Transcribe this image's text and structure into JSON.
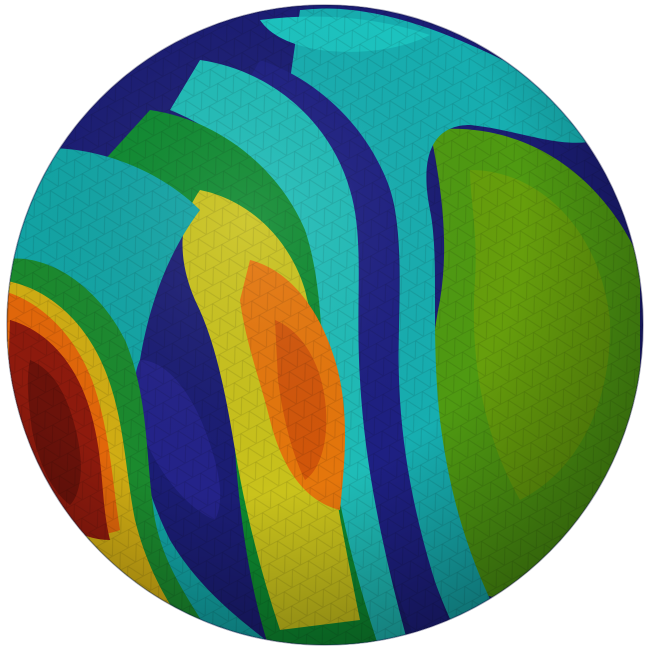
{
  "scene": {
    "subject": "sphere-mesh",
    "colormap": [
      "#191970",
      "#00CED1",
      "#008000",
      "#CCCC00",
      "#FF8C00",
      "#8B0000"
    ],
    "background": "#ffffff",
    "bands": [
      {
        "name": "cap-right",
        "color": "#4f9a12"
      },
      {
        "name": "stripe-blue-1",
        "color": "#1d1f7a"
      },
      {
        "name": "stripe-cyan-1",
        "color": "#19b6b4"
      },
      {
        "name": "band-green",
        "color": "#0f8a2c"
      },
      {
        "name": "band-yellow",
        "color": "#c9c51a"
      },
      {
        "name": "band-orange",
        "color": "#e37a0c"
      },
      {
        "name": "stripe-blue-2",
        "color": "#222389"
      },
      {
        "name": "band-red",
        "color": "#8a1a0c"
      }
    ]
  }
}
